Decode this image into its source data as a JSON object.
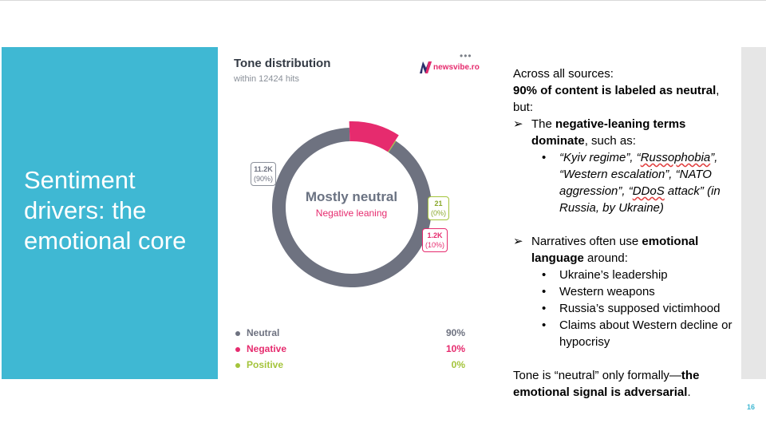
{
  "slide": {
    "title_lines": [
      "Sentiment",
      "drivers: the",
      "emotional core"
    ],
    "page_number": "16",
    "accent_color": "#3fb8d3"
  },
  "card": {
    "title": "Tone distribution",
    "subtitle": "within 12424 hits",
    "logo_text": "newsvibe.ro",
    "logo_icon": "n-logo-icon",
    "menu_icon": "more-dots-icon",
    "menu_glyph": "•••"
  },
  "chart_data": {
    "type": "pie",
    "total": 12424,
    "center_label": "Mostly neutral",
    "center_sublabel": "Negative leaning",
    "slices": [
      {
        "name": "Neutral",
        "value": 11200,
        "display": "11.2K",
        "percent": 90,
        "percent_label": "(90%)",
        "legend_percent": "90%",
        "color": "#6e7280"
      },
      {
        "name": "Negative",
        "value": 1200,
        "display": "1.2K",
        "percent": 10,
        "percent_label": "(10%)",
        "legend_percent": "10%",
        "color": "#e62b6e"
      },
      {
        "name": "Positive",
        "value": 21,
        "display": "21",
        "percent": 0,
        "percent_label": "(0%)",
        "legend_percent": "0%",
        "color": "#a4c43b"
      }
    ]
  },
  "text": {
    "intro_1": "Across all sources:",
    "intro_bold": "90% of content is labeled as neutral",
    "intro_comma": ",",
    "intro_3": "but:",
    "arrow_glyph": "➢",
    "bullet_glyph": "•",
    "point1_a": "The ",
    "point1_bold": "negative-leaning terms dominate",
    "point1_b": ", such as:",
    "terms_1a": "“Kyiv regime”, “",
    "terms_1b": "Russophobia",
    "terms_1c": "”, “Western escalation”, “NATO aggression”, “",
    "terms_1d": "DDoS",
    "terms_1e": " attack” (in Russia, by Ukraine)",
    "point2_a": "Narratives often use ",
    "point2_bold": "emotional language",
    "point2_b": " around:",
    "sub_items": [
      "Ukraine’s leadership",
      "Western weapons",
      "Russia’s supposed victimhood",
      "Claims about Western decline or hypocrisy"
    ],
    "outro_a": "Tone is “neutral” only formally—",
    "outro_bold": "the emotional signal is adversarial",
    "outro_b": "."
  }
}
